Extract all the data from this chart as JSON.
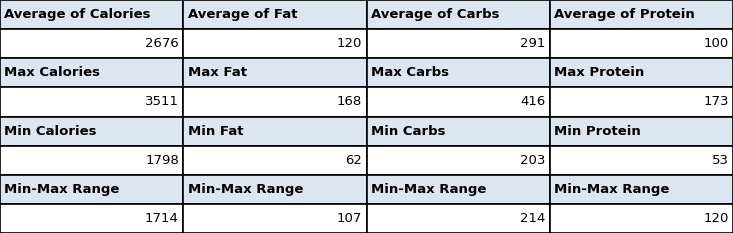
{
  "sections": [
    {
      "header_labels": [
        "Average of Calories",
        "Average of Fat",
        "Average of Carbs",
        "Average of Protein"
      ],
      "values": [
        "2676",
        "120",
        "291",
        "100"
      ]
    },
    {
      "header_labels": [
        "Max Calories",
        "Max Fat",
        "Max Carbs",
        "Max Protein"
      ],
      "values": [
        "3511",
        "168",
        "416",
        "173"
      ]
    },
    {
      "header_labels": [
        "Min Calories",
        "Min Fat",
        "Min Carbs",
        "Min Protein"
      ],
      "values": [
        "1798",
        "62",
        "203",
        "53"
      ]
    },
    {
      "header_labels": [
        "Min-Max Range",
        "Min-Max Range",
        "Min-Max Range",
        "Min-Max Range"
      ],
      "values": [
        "1714",
        "107",
        "214",
        "120"
      ]
    }
  ],
  "col_boundaries": [
    0.0,
    0.25,
    0.5,
    0.75,
    1.0
  ],
  "header_bg": "#dce6f1",
  "value_bg": "#ffffff",
  "border_color": "#000000",
  "text_color": "#000000",
  "header_fontsize": 9.5,
  "value_fontsize": 9.5,
  "lw": 1.2
}
